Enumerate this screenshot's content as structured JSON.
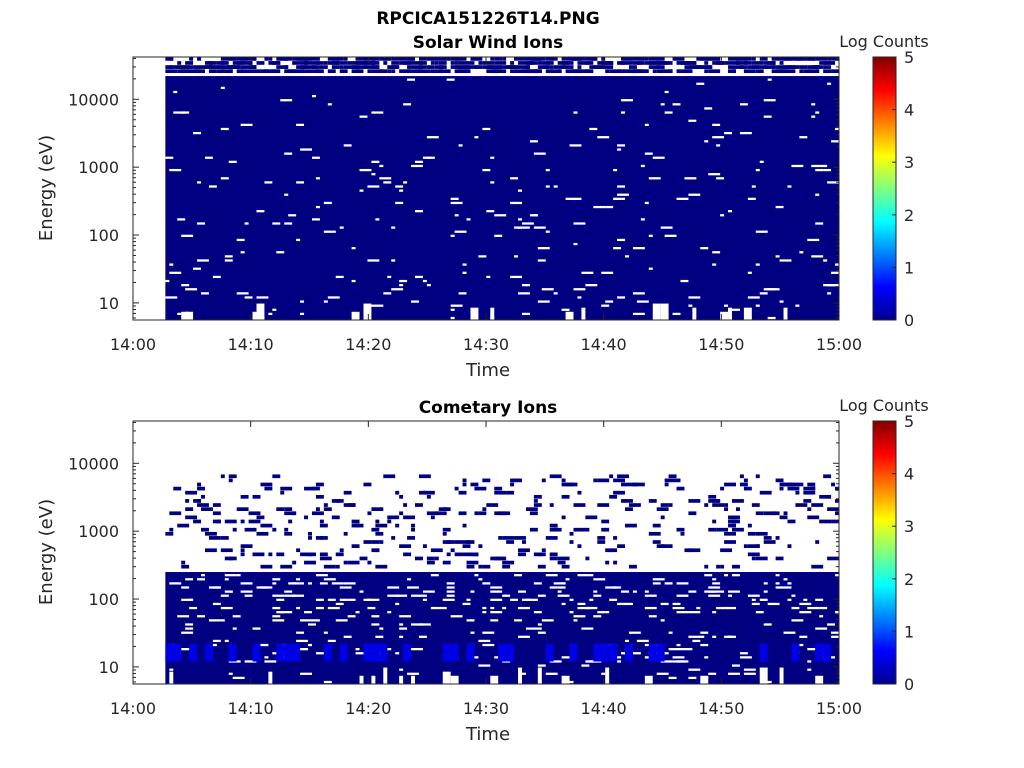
{
  "figure": {
    "title": "RPCICA151226T14.PNG"
  },
  "chart_data": [
    {
      "type": "heatmap",
      "title": "Solar Wind Ions",
      "xlabel": "Time",
      "ylabel": "Energy (eV)",
      "x_range": [
        "14:00",
        "15:00"
      ],
      "x_ticks": [
        "14:00",
        "14:10",
        "14:20",
        "14:30",
        "14:40",
        "14:50",
        "15:00"
      ],
      "y_scale": "log",
      "y_range_ev": [
        5.6,
        42000
      ],
      "y_ticks": [
        "10",
        "100",
        "1000",
        "10000"
      ],
      "data_start_time": "14:02:45",
      "colorbar": {
        "label": "Log Counts",
        "range": [
          0,
          5
        ],
        "ticks": [
          "0",
          "1",
          "2",
          "3",
          "4",
          "5"
        ]
      },
      "dominant_log_counts": 0,
      "fill_top_ev": 22000,
      "sparse_above_ev": 22000,
      "gap_density_low_energy": 0.12,
      "gap_density_high_energy": 0.06,
      "seed": 7
    },
    {
      "type": "heatmap",
      "title": "Cometary Ions",
      "xlabel": "Time",
      "ylabel": "Energy (eV)",
      "x_range": [
        "14:00",
        "15:00"
      ],
      "x_ticks": [
        "14:00",
        "14:10",
        "14:20",
        "14:30",
        "14:40",
        "14:50",
        "15:00"
      ],
      "y_scale": "log",
      "y_range_ev": [
        5.6,
        42000
      ],
      "y_ticks": [
        "10",
        "100",
        "1000",
        "10000"
      ],
      "data_start_time": "14:02:45",
      "colorbar": {
        "label": "Log Counts",
        "range": [
          0,
          5
        ],
        "ticks": [
          "0",
          "1",
          "2",
          "3",
          "4",
          "5"
        ]
      },
      "dominant_log_counts": 0,
      "fill_top_ev": 250,
      "sparse_above_ev": 7000,
      "bright_band_ev": [
        12,
        22
      ],
      "bright_band_log_counts": 0.5,
      "gap_density_low_energy": 0.1,
      "gap_density_high_energy": 0.35,
      "seed": 13
    }
  ]
}
